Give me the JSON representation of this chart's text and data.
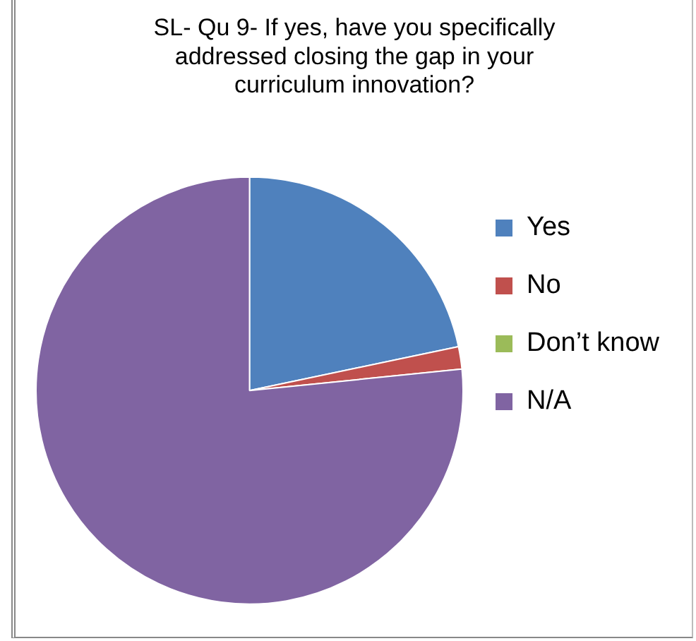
{
  "chart_data": {
    "type": "pie",
    "title": "SL- Qu 9- If yes, have you specifically addressed closing the gap in your curriculum innovation?",
    "categories": [
      "Yes",
      "No",
      "Don’t know",
      "N/A"
    ],
    "values": [
      21.7,
      1.7,
      0,
      76.6
    ],
    "colors": [
      "#4f81bd",
      "#c0504d",
      "#9bbb59",
      "#8064a2"
    ],
    "legend": "right"
  }
}
